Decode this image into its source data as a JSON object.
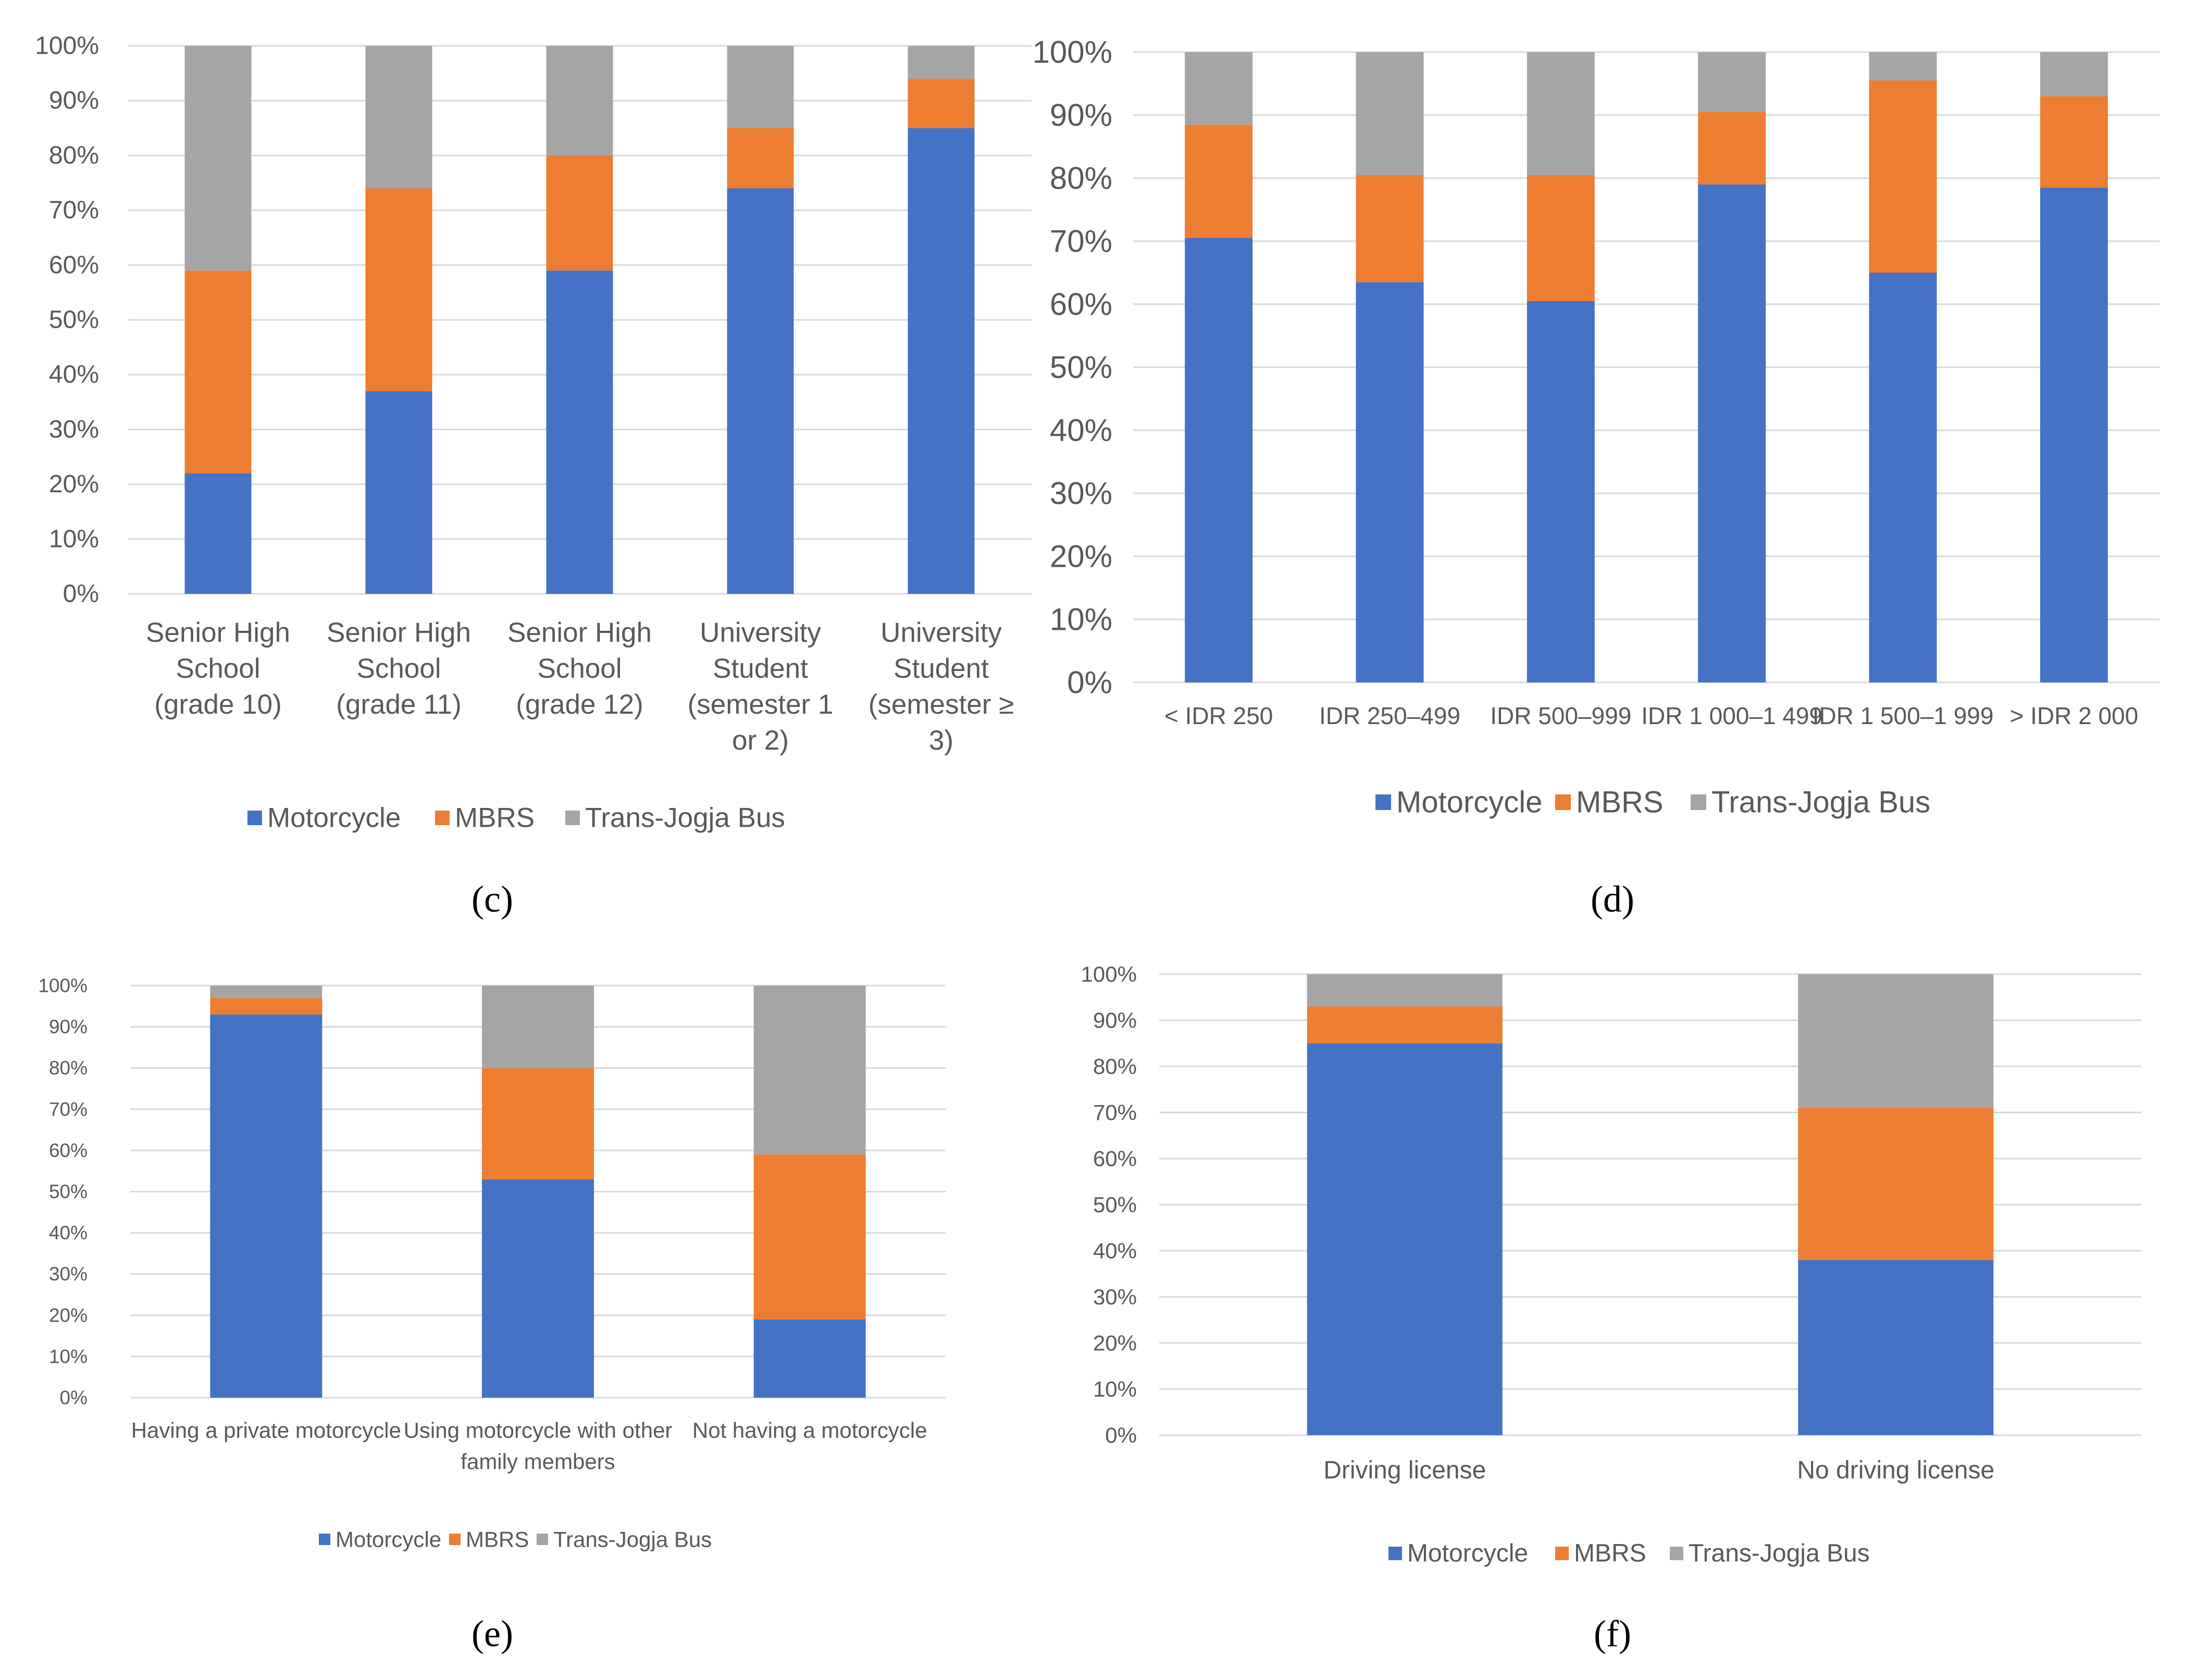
{
  "colors": {
    "Motorcycle": "#4472C4",
    "MBRS": "#ED7D31",
    "Trans-Jogja Bus": "#A5A5A5",
    "gridline": "#D9D9D9",
    "axis_text": "#595959"
  },
  "chart_data": [
    {
      "type": "bar",
      "stacked": true,
      "panel_label": "c",
      "panel_label_text": "(c)",
      "categories": [
        "Senior High School (grade 10)",
        "Senior High School (grade 11)",
        "Senior High School (grade 12)",
        "University Student (semester 1 or 2)",
        "University Student (semester ≥ 3)"
      ],
      "category_lines": [
        [
          "Senior High",
          "School",
          "(grade 10)"
        ],
        [
          "Senior High",
          "School",
          "(grade 11)"
        ],
        [
          "Senior High",
          "School",
          "(grade 12)"
        ],
        [
          "University",
          "Student",
          "(semester 1",
          "or 2)"
        ],
        [
          "University",
          "Student",
          "(semester ≥",
          "3)"
        ]
      ],
      "series": [
        {
          "name": "Motorcycle",
          "values": [
            22,
            37,
            59,
            74,
            85
          ]
        },
        {
          "name": "MBRS",
          "values": [
            37,
            37,
            21,
            11,
            9
          ]
        },
        {
          "name": "Trans-Jogja Bus",
          "values": [
            41,
            26,
            20,
            15,
            6
          ]
        }
      ],
      "ylim": [
        0,
        100
      ],
      "yticks": [
        "0%",
        "10%",
        "20%",
        "30%",
        "40%",
        "50%",
        "60%",
        "70%",
        "80%",
        "90%",
        "100%"
      ],
      "legend": [
        "Motorcycle",
        "MBRS",
        "Trans-Jogja Bus"
      ],
      "legend_position": "bottom",
      "grid": true
    },
    {
      "type": "bar",
      "stacked": true,
      "panel_label": "d",
      "panel_label_text": "(d)",
      "categories": [
        "< IDR 250",
        "IDR 250–499",
        "IDR 500–999",
        "IDR 1 000–1 499",
        "IDR 1 500–1 999",
        "> IDR 2 000"
      ],
      "category_lines": [
        [
          "< IDR 250"
        ],
        [
          "IDR 250–499"
        ],
        [
          "IDR 500–999"
        ],
        [
          "IDR 1 000–1 499"
        ],
        [
          "IDR 1 500–1 999"
        ],
        [
          "> IDR 2 000"
        ]
      ],
      "series": [
        {
          "name": "Motorcycle",
          "values": [
            70.5,
            63.5,
            60.5,
            79,
            65,
            78.5
          ]
        },
        {
          "name": "MBRS",
          "values": [
            18,
            17,
            20,
            11.5,
            30.5,
            14.5
          ]
        },
        {
          "name": "Trans-Jogja Bus",
          "values": [
            11.5,
            19.5,
            19.5,
            9.5,
            4.5,
            7
          ]
        }
      ],
      "ylim": [
        0,
        100
      ],
      "yticks": [
        "0%",
        "10%",
        "20%",
        "30%",
        "40%",
        "50%",
        "60%",
        "70%",
        "80%",
        "90%",
        "100%"
      ],
      "legend": [
        "Motorcycle",
        "MBRS",
        "Trans-Jogja Bus"
      ],
      "legend_position": "bottom",
      "grid": true
    },
    {
      "type": "bar",
      "stacked": true,
      "panel_label": "e",
      "panel_label_text": "(e)",
      "categories": [
        "Having a private motorcycle",
        "Using motorcycle with other family members",
        "Not having a motorcycle"
      ],
      "category_lines": [
        [
          "Having a private motorcycle"
        ],
        [
          "Using motorcycle with other",
          "family members"
        ],
        [
          "Not having a motorcycle"
        ]
      ],
      "series": [
        {
          "name": "Motorcycle",
          "values": [
            93,
            53,
            19
          ]
        },
        {
          "name": "MBRS",
          "values": [
            4,
            27,
            40
          ]
        },
        {
          "name": "Trans-Jogja Bus",
          "values": [
            3,
            20,
            41
          ]
        }
      ],
      "ylim": [
        0,
        100
      ],
      "yticks": [
        "0%",
        "10%",
        "20%",
        "30%",
        "40%",
        "50%",
        "60%",
        "70%",
        "80%",
        "90%",
        "100%"
      ],
      "legend": [
        "Motorcycle",
        "MBRS",
        "Trans-Jogja Bus"
      ],
      "legend_position": "bottom",
      "grid": true
    },
    {
      "type": "bar",
      "stacked": true,
      "panel_label": "f",
      "panel_label_text": "(f)",
      "categories": [
        "Driving license",
        "No driving license"
      ],
      "category_lines": [
        [
          "Driving license"
        ],
        [
          "No driving license"
        ]
      ],
      "series": [
        {
          "name": "Motorcycle",
          "values": [
            85,
            38
          ]
        },
        {
          "name": "MBRS",
          "values": [
            8,
            33
          ]
        },
        {
          "name": "Trans-Jogja Bus",
          "values": [
            7,
            29
          ]
        }
      ],
      "ylim": [
        0,
        100
      ],
      "yticks": [
        "0%",
        "10%",
        "20%",
        "30%",
        "40%",
        "50%",
        "60%",
        "70%",
        "80%",
        "90%",
        "100%"
      ],
      "legend": [
        "Motorcycle",
        "MBRS",
        "Trans-Jogja Bus"
      ],
      "legend_position": "bottom",
      "grid": true
    }
  ]
}
